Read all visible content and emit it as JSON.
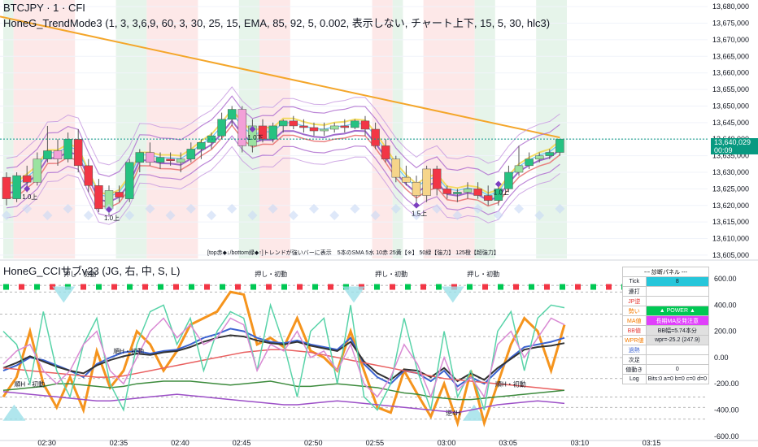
{
  "header": {
    "title": "BTCJPY · 1 · CFI",
    "indicator1": "HoneG_TrendMode3 (1, 3, 3,6,9, 60, 3, 30, 25, 15, EMA, 85, 92, 5, 0.002, 表示しない, チャート上下, 15, 5, 30, hlc3)",
    "indicator2": "HoneG_CCIサブv23 (JG, 右, 中, S, L)",
    "note": "[top赤◆↓/bottom緑◆↑]トレンドが強いバーに表示　5本のSMA 5水 10赤 25黄【※】 50緑【強力】 125橙【超強力】"
  },
  "price_tag": {
    "price": "13,640,029",
    "countdown": "00:09"
  },
  "colors": {
    "up": "#26a69a",
    "down": "#ef5350",
    "orange": "#f4a62a",
    "purple": "#8e4fc4",
    "green_band": "#e6f4ea",
    "red_band": "#fde8e8"
  },
  "chart_data": [
    {
      "type": "candlestick",
      "title": "BTCJPY · 1 · CFI",
      "yaxis_ticks": [
        13680000,
        13675000,
        13670000,
        13665000,
        13660000,
        13655000,
        13650000,
        13645000,
        13640000,
        13635000,
        13630000,
        13625000,
        13620000,
        13615000,
        13610000,
        13605000
      ],
      "ylim": [
        13604000,
        13682000
      ],
      "last_price": 13640029,
      "candles": [
        {
          "o": 13628500,
          "h": 13630000,
          "l": 13620000,
          "c": 13622000
        },
        {
          "o": 13622000,
          "h": 13630000,
          "l": 13621000,
          "c": 13629000
        },
        {
          "o": 13629000,
          "h": 13632000,
          "l": 13624000,
          "c": 13627000
        },
        {
          "o": 13627000,
          "h": 13636000,
          "l": 13626000,
          "c": 13634000
        },
        {
          "o": 13634000,
          "h": 13644000,
          "l": 13633000,
          "c": 13636500
        },
        {
          "o": 13636500,
          "h": 13640000,
          "l": 13632000,
          "c": 13634000
        },
        {
          "o": 13634000,
          "h": 13642000,
          "l": 13633000,
          "c": 13640000
        },
        {
          "o": 13640000,
          "h": 13643000,
          "l": 13630000,
          "c": 13632000
        },
        {
          "o": 13632000,
          "h": 13634000,
          "l": 13624000,
          "c": 13626000
        },
        {
          "o": 13626000,
          "h": 13628000,
          "l": 13618000,
          "c": 13619000
        },
        {
          "o": 13619000,
          "h": 13626000,
          "l": 13617000,
          "c": 13624500
        },
        {
          "o": 13624000,
          "h": 13626000,
          "l": 13621000,
          "c": 13622500
        },
        {
          "o": 13622000,
          "h": 13634000,
          "l": 13621000,
          "c": 13633000
        },
        {
          "o": 13633000,
          "h": 13637000,
          "l": 13630000,
          "c": 13636000
        },
        {
          "o": 13636000,
          "h": 13639000,
          "l": 13632000,
          "c": 13633000
        },
        {
          "o": 13633000,
          "h": 13636000,
          "l": 13631000,
          "c": 13634500
        },
        {
          "o": 13634000,
          "h": 13636000,
          "l": 13632000,
          "c": 13633500
        },
        {
          "o": 13633000,
          "h": 13636000,
          "l": 13630000,
          "c": 13634000
        },
        {
          "o": 13634000,
          "h": 13639000,
          "l": 13633000,
          "c": 13637000
        },
        {
          "o": 13637000,
          "h": 13640000,
          "l": 13634000,
          "c": 13639000
        },
        {
          "o": 13639000,
          "h": 13642000,
          "l": 13637000,
          "c": 13641000
        },
        {
          "o": 13641000,
          "h": 13648000,
          "l": 13640000,
          "c": 13646000
        },
        {
          "o": 13646000,
          "h": 13650000,
          "l": 13644000,
          "c": 13649000
        },
        {
          "o": 13649000,
          "h": 13650000,
          "l": 13636000,
          "c": 13638000
        },
        {
          "o": 13638000,
          "h": 13646000,
          "l": 13636000,
          "c": 13644000
        },
        {
          "o": 13644000,
          "h": 13646000,
          "l": 13639000,
          "c": 13640000
        },
        {
          "o": 13640000,
          "h": 13645000,
          "l": 13639000,
          "c": 13644000
        },
        {
          "o": 13644000,
          "h": 13646000,
          "l": 13642000,
          "c": 13645500
        },
        {
          "o": 13645500,
          "h": 13647000,
          "l": 13643000,
          "c": 13644000
        },
        {
          "o": 13644000,
          "h": 13646000,
          "l": 13642000,
          "c": 13643500
        },
        {
          "o": 13643500,
          "h": 13645000,
          "l": 13641000,
          "c": 13642500
        },
        {
          "o": 13642500,
          "h": 13645000,
          "l": 13641000,
          "c": 13643000
        },
        {
          "o": 13643000,
          "h": 13645000,
          "l": 13642000,
          "c": 13644000
        },
        {
          "o": 13644000,
          "h": 13646000,
          "l": 13642000,
          "c": 13643500
        },
        {
          "o": 13643500,
          "h": 13646000,
          "l": 13643000,
          "c": 13645500
        },
        {
          "o": 13645500,
          "h": 13647000,
          "l": 13641000,
          "c": 13643000
        },
        {
          "o": 13643000,
          "h": 13645000,
          "l": 13637000,
          "c": 13638000
        },
        {
          "o": 13638000,
          "h": 13640000,
          "l": 13633000,
          "c": 13634000
        },
        {
          "o": 13634000,
          "h": 13635000,
          "l": 13627000,
          "c": 13628500
        },
        {
          "o": 13628500,
          "h": 13632000,
          "l": 13626000,
          "c": 13627000
        },
        {
          "o": 13627000,
          "h": 13629000,
          "l": 13621000,
          "c": 13623000
        },
        {
          "o": 13623000,
          "h": 13632000,
          "l": 13621000,
          "c": 13631000
        },
        {
          "o": 13631000,
          "h": 13632000,
          "l": 13623000,
          "c": 13625000
        },
        {
          "o": 13625000,
          "h": 13626000,
          "l": 13622000,
          "c": 13623500
        },
        {
          "o": 13623500,
          "h": 13625000,
          "l": 13621000,
          "c": 13624000
        },
        {
          "o": 13624000,
          "h": 13627000,
          "l": 13622000,
          "c": 13625000
        },
        {
          "o": 13625000,
          "h": 13627000,
          "l": 13622000,
          "c": 13623000
        },
        {
          "o": 13623000,
          "h": 13626000,
          "l": 13620000,
          "c": 13621500
        },
        {
          "o": 13621500,
          "h": 13626000,
          "l": 13620000,
          "c": 13625000
        },
        {
          "o": 13625000,
          "h": 13632000,
          "l": 13624000,
          "c": 13630000
        },
        {
          "o": 13630000,
          "h": 13638000,
          "l": 13629000,
          "c": 13632000
        },
        {
          "o": 13632000,
          "h": 13636000,
          "l": 13631000,
          "c": 13634000
        },
        {
          "o": 13634000,
          "h": 13636000,
          "l": 13633000,
          "c": 13635000
        },
        {
          "o": 13635000,
          "h": 13637000,
          "l": 13634000,
          "c": 13636000
        },
        {
          "o": 13636000,
          "h": 13640000,
          "l": 13635000,
          "c": 13640029
        }
      ],
      "candle_indices": [
        0,
        1,
        2,
        3,
        4,
        5,
        6,
        7,
        8,
        9,
        10,
        11,
        12,
        13,
        14,
        15,
        16,
        17,
        18,
        19,
        20,
        21,
        22,
        23,
        24,
        25,
        26,
        27,
        28,
        29,
        30,
        31,
        32,
        33,
        34,
        35,
        36,
        37,
        38,
        39,
        40,
        41,
        42,
        43,
        44,
        45,
        46,
        47,
        48,
        49,
        50,
        51,
        52,
        53,
        54
      ],
      "annotations": [
        {
          "text": "1.0上",
          "i": 2,
          "price": 13624800
        },
        {
          "text": "1.0上",
          "i": 10,
          "price": 13618500
        },
        {
          "text": "1.0下",
          "i": 24,
          "price": 13642800
        },
        {
          "text": "1.5上",
          "i": 40,
          "price": 13619800
        },
        {
          "text": "1.0上",
          "i": 48,
          "price": 13626200
        }
      ],
      "x_ticks": [
        {
          "label": "02:30",
          "i": 4
        },
        {
          "label": "02:35",
          "i": 11
        },
        {
          "label": "02:40",
          "i": 17
        },
        {
          "label": "02:45",
          "i": 23
        },
        {
          "label": "02:50",
          "i": 30
        },
        {
          "label": "02:55",
          "i": 36
        },
        {
          "label": "03:00",
          "i": 43
        },
        {
          "label": "03:05",
          "i": 49
        },
        {
          "label": "03:10",
          "i": 56
        },
        {
          "label": "03:15",
          "i": 63
        }
      ]
    },
    {
      "type": "line",
      "title": "HoneG_CCIサブv23 (JG, 右, 中, S, L)",
      "yaxis_ticks": [
        600,
        400,
        200,
        0,
        -200,
        -400,
        -600
      ],
      "ylim": [
        -620,
        650
      ],
      "series": [
        {
          "color": "#f5941d",
          "values": [
            -300,
            -150,
            200,
            -200,
            -380,
            -150,
            -400,
            50,
            -230,
            -100,
            200,
            100,
            -100,
            50,
            250,
            300,
            350,
            500,
            480,
            100,
            150,
            80,
            300,
            50,
            0,
            -100,
            200,
            -100,
            -380,
            -420,
            -100,
            -280,
            -450,
            -200,
            -500,
            -100,
            -500,
            -200,
            100,
            300,
            200,
            -100,
            250
          ]
        },
        {
          "color": "#3b62d0",
          "values": [
            -100,
            -60,
            0,
            -20,
            -60,
            -100,
            -150,
            -50,
            0,
            40,
            50,
            30,
            50,
            60,
            100,
            150,
            180,
            220,
            200,
            150,
            120,
            110,
            130,
            100,
            80,
            60,
            150,
            -50,
            -150,
            -200,
            -100,
            -120,
            -180,
            -100,
            -220,
            -150,
            -200,
            -100,
            0,
            80,
            100,
            120,
            150
          ]
        },
        {
          "color": "#333333",
          "values": [
            -80,
            -40,
            10,
            -30,
            -70,
            -100,
            -120,
            -60,
            -20,
            10,
            30,
            20,
            40,
            50,
            80,
            120,
            150,
            170,
            160,
            130,
            110,
            100,
            120,
            90,
            70,
            50,
            120,
            -30,
            -120,
            -170,
            -90,
            -100,
            -150,
            -80,
            -180,
            -120,
            -170,
            -80,
            -10,
            60,
            80,
            90,
            110
          ]
        },
        {
          "color": "#e95f5f",
          "values": [
            -80,
            -90,
            -100,
            -110,
            -120,
            -130,
            -140,
            -150,
            -150,
            -140,
            -120,
            -100,
            -80,
            -60,
            -40,
            -20,
            0,
            20,
            40,
            50,
            60,
            60,
            50,
            40,
            20,
            0,
            -20,
            -40,
            -60,
            -80,
            -100,
            -120,
            -140,
            -160,
            -170,
            -180,
            -190,
            -200,
            -210,
            -220,
            -230,
            -240,
            -250
          ]
        },
        {
          "color": "#3d8b3d",
          "values": [
            -250,
            -240,
            -230,
            -220,
            -200,
            -200,
            -210,
            -220,
            -230,
            -220,
            -200,
            -190,
            -180,
            -180,
            -180,
            -190,
            -200,
            -210,
            -200,
            -190,
            -180,
            -200,
            -220,
            -220,
            -210,
            -200,
            -210,
            -220,
            -230,
            -250,
            -270,
            -280,
            -300,
            -310,
            -320,
            -320,
            -310,
            -300,
            -290,
            -280,
            -270,
            -260,
            -250
          ]
        },
        {
          "color": "#9c4fc7",
          "values": [
            -260,
            -270,
            -280,
            -290,
            -300,
            -310,
            -320,
            -330,
            -330,
            -320,
            -310,
            -300,
            -290,
            -280,
            -290,
            -300,
            -310,
            -320,
            -330,
            -340,
            -350,
            -360,
            -360,
            -350,
            -340,
            -330,
            -340,
            -350,
            -360,
            -370,
            -380,
            -390,
            -400,
            -410,
            -420,
            -400,
            -380,
            -360,
            -350,
            -340,
            -330,
            -340,
            -350
          ]
        },
        {
          "color": "#58d3a8",
          "values": [
            200,
            100,
            -200,
            350,
            -100,
            -300,
            100,
            300,
            -200,
            -400,
            100,
            350,
            400,
            100,
            300,
            -100,
            200,
            350,
            300,
            -100,
            400,
            100,
            -300,
            200,
            300,
            -200,
            400,
            -300,
            -400,
            -200,
            300,
            -100,
            -400,
            200,
            -300,
            -100,
            -400,
            200,
            350,
            -100,
            300,
            400,
            380
          ]
        },
        {
          "color": "#d98ad3",
          "values": [
            -50,
            50,
            100,
            -100,
            -200,
            -100,
            100,
            200,
            -100,
            -200,
            0,
            200,
            300,
            150,
            250,
            100,
            150,
            300,
            250,
            -100,
            100,
            50,
            200,
            0,
            50,
            -100,
            100,
            -200,
            -300,
            -150,
            100,
            -50,
            -300,
            0,
            -250,
            -150,
            -300,
            100,
            200,
            0,
            150,
            300,
            250
          ]
        }
      ],
      "level_lines": [
        550,
        500,
        330,
        160,
        0,
        -160,
        -300,
        -380,
        -470
      ],
      "signal_labels": [
        {
          "text": "押し・初動",
          "x": 0.09,
          "v": 620
        },
        {
          "text": "押し・初動",
          "x": 0.36,
          "v": 620
        },
        {
          "text": "押し・初動",
          "x": 0.53,
          "v": 620
        },
        {
          "text": "押し・初動",
          "x": 0.66,
          "v": 620
        },
        {
          "text": "順H・初動",
          "x": 0.16,
          "v": 30
        },
        {
          "text": "順H・初動",
          "x": 0.02,
          "v": -220
        },
        {
          "text": "順H・初動",
          "x": 0.7,
          "v": -220
        },
        {
          "text": "逆4H",
          "x": 0.63,
          "v": -440
        }
      ],
      "x_ticks": [
        "02:30",
        "02:35",
        "02:40",
        "02:45",
        "02:50",
        "02:55",
        "03:00",
        "03:05",
        "03:10",
        "03:15"
      ]
    }
  ],
  "panel": {
    "title": "--- 診断パネル ---",
    "rows": [
      {
        "key": "Tick",
        "value": "8",
        "key_color": "#131722",
        "bg": "#26c6da",
        "fg": "#131722"
      },
      {
        "key": "連打",
        "value": "",
        "key_color": "#131722",
        "bg": "#ffffff",
        "fg": "#131722"
      },
      {
        "key": "JP逆",
        "value": "",
        "key_color": "#e53935",
        "bg": "#ffffff",
        "fg": "#131722"
      },
      {
        "key": "勢い",
        "value": "▲ POWER ▲",
        "key_color": "#f57c00",
        "bg": "#00c853",
        "fg": "#ffffff"
      },
      {
        "key": "MA値",
        "value": "長期MA反発注意",
        "key_color": "#f57c00",
        "bg": "#e040fb",
        "fg": "#ffffff"
      },
      {
        "key": "BB値",
        "value": "BB幅=5.74本分",
        "key_color": "#e53935",
        "bg": "#e0e0e0",
        "fg": "#131722"
      },
      {
        "key": "WPR値",
        "value": "wpr=-25.2 (247.9)",
        "key_color": "#f57c00",
        "bg": "#e0e0e0",
        "fg": "#131722"
      },
      {
        "key": "過熱",
        "value": "",
        "key_color": "#3b62d0",
        "bg": "#ffffff",
        "fg": "#131722"
      },
      {
        "key": "次足",
        "value": "",
        "key_color": "#131722",
        "bg": "#ffffff",
        "fg": "#131722"
      },
      {
        "key": "値動き",
        "value": "0",
        "key_color": "#131722",
        "bg": "#ffffff",
        "fg": "#131722"
      },
      {
        "key": "Log",
        "value": "Bits:0 a=0 b=0 c=0 d=0",
        "key_color": "#131722",
        "bg": "#ffffff",
        "fg": "#131722"
      }
    ]
  }
}
